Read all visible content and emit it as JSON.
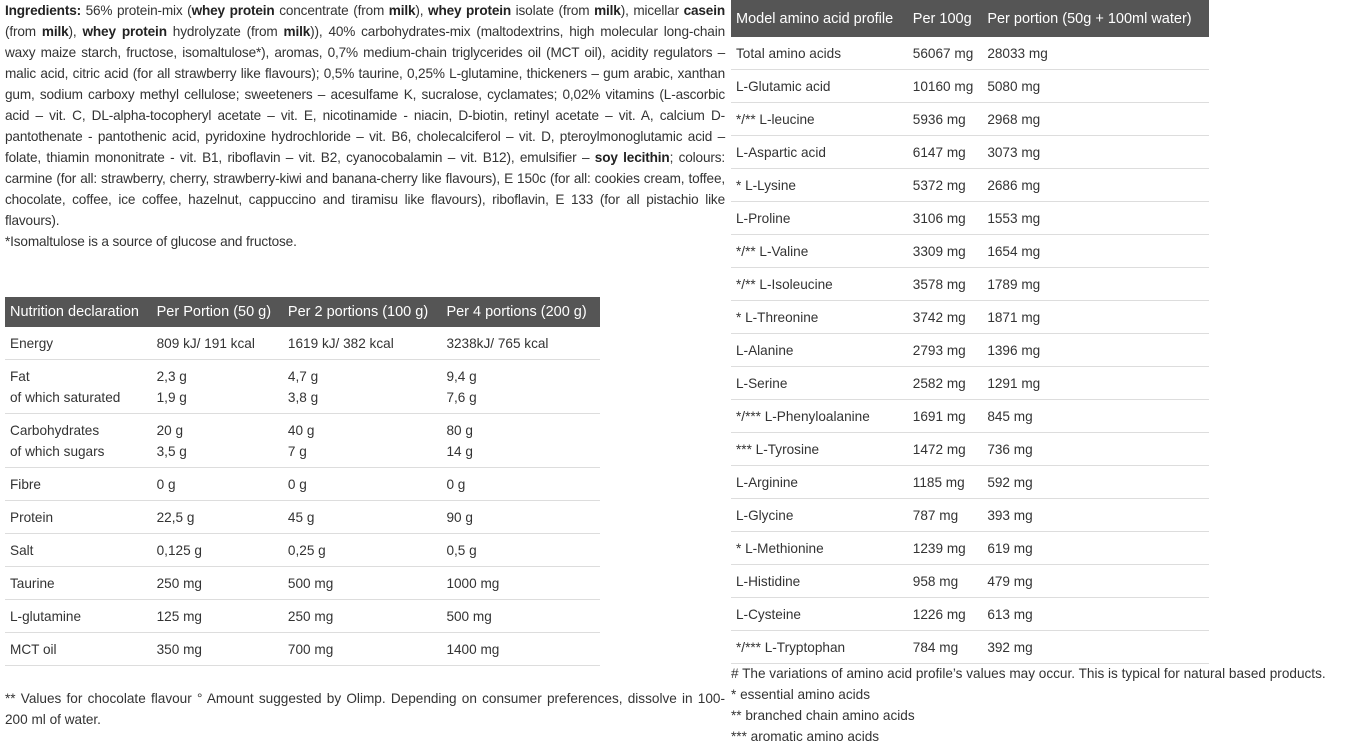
{
  "ingredients": {
    "segments": [
      {
        "text": "Ingredients:",
        "bold": true
      },
      {
        "text": " 56% protein-mix (",
        "bold": false
      },
      {
        "text": "whey protein",
        "bold": true
      },
      {
        "text": " concentrate (from ",
        "bold": false
      },
      {
        "text": "milk",
        "bold": true
      },
      {
        "text": "), ",
        "bold": false
      },
      {
        "text": "whey protein",
        "bold": true
      },
      {
        "text": " isolate (from ",
        "bold": false
      },
      {
        "text": "milk",
        "bold": true
      },
      {
        "text": "), micellar ",
        "bold": false
      },
      {
        "text": "casein",
        "bold": true
      },
      {
        "text": " (from ",
        "bold": false
      },
      {
        "text": "milk",
        "bold": true
      },
      {
        "text": "), ",
        "bold": false
      },
      {
        "text": "whey protein",
        "bold": true
      },
      {
        "text": " hydrolyzate (from ",
        "bold": false
      },
      {
        "text": "milk",
        "bold": true
      },
      {
        "text": ")), 40% carbohydrates-mix (maltodextrins, high molecular long-chain waxy maize starch, fructose, isomaltulose*), aromas, 0,7% medium-chain triglycerides oil (MCT oil), acidity regulators – malic acid, citric acid (for all strawberry like flavours); 0,5% taurine, 0,25% L-glutamine, thickeners – gum arabic, xanthan gum, sodium carboxy methyl cellulose; sweeteners – acesulfame K, sucralose, cyclamates; 0,02% vitamins (L-ascorbic acid – vit. C, DL-alpha-tocopheryl acetate – vit. E, nicotinamide - niacin, D-biotin, retinyl acetate – vit. A, calcium D-pantothenate - pantothenic acid, pyridoxine hydrochloride – vit. B6, cholecalciferol – vit. D, pteroylmonoglutamic acid – folate, thiamin mononitrate - vit. B1, riboflavin – vit. B2, cyanocobalamin – vit. B12), emulsifier – ",
        "bold": false
      },
      {
        "text": "soy lecithin",
        "bold": true
      },
      {
        "text": "; colours: carmine (for all: strawberry, cherry, strawberry-kiwi and banana-cherry like flavours), E 150c (for all: cookies cream, toffee, chocolate, coffee, ice coffee, hazelnut, cappuccino and tiramisu like flavours), riboflavin, E 133 (for all pistachio like flavours).",
        "bold": false
      }
    ],
    "note": "*Isomaltulose is a source of glucose and fructose."
  },
  "nutrition": {
    "headers": [
      "Nutrition declaration",
      "Per Portion (50 g)",
      "Per 2 portions (100 g)",
      "Per 4 portions (200 g)"
    ],
    "rows": [
      [
        [
          "Energy"
        ],
        [
          "809 kJ/ 191 kcal"
        ],
        [
          "1619 kJ/ 382 kcal"
        ],
        [
          "3238kJ/ 765 kcal"
        ]
      ],
      [
        [
          "Fat",
          "of which saturated"
        ],
        [
          "2,3 g",
          "1,9 g"
        ],
        [
          "4,7 g",
          "3,8 g"
        ],
        [
          "9,4 g",
          "7,6 g"
        ]
      ],
      [
        [
          "Carbohydrates",
          "of which sugars"
        ],
        [
          "20 g",
          "3,5 g"
        ],
        [
          "40 g",
          "7 g"
        ],
        [
          "80 g",
          "14 g"
        ]
      ],
      [
        [
          "Fibre"
        ],
        [
          "0 g"
        ],
        [
          "0 g"
        ],
        [
          "0 g"
        ]
      ],
      [
        [
          "Protein"
        ],
        [
          "22,5 g"
        ],
        [
          "45 g"
        ],
        [
          "90 g"
        ]
      ],
      [
        [
          "Salt"
        ],
        [
          "0,125 g"
        ],
        [
          "0,25 g"
        ],
        [
          "0,5 g"
        ]
      ],
      [
        [
          "Taurine"
        ],
        [
          "250 mg"
        ],
        [
          "500 mg"
        ],
        [
          "1000 mg"
        ]
      ],
      [
        [
          "L-glutamine"
        ],
        [
          "125 mg"
        ],
        [
          "250 mg"
        ],
        [
          "500 mg"
        ]
      ],
      [
        [
          "MCT oil"
        ],
        [
          "350 mg"
        ],
        [
          "700 mg"
        ],
        [
          "1400 mg"
        ]
      ]
    ],
    "footnote": "** Values for chocolate flavour ° Amount suggested by Olimp. Depending on consumer preferences, dissolve in 100-200 ml of water."
  },
  "amino": {
    "headers": [
      "Model amino acid profile",
      "Per 100g",
      "Per portion (50g + 100ml water)"
    ],
    "rows": [
      [
        "Total amino acids",
        "56067 mg",
        "28033 mg"
      ],
      [
        "L-Glutamic acid",
        "10160 mg",
        "5080 mg"
      ],
      [
        "*/** L-leucine",
        "5936 mg",
        "2968 mg"
      ],
      [
        "L-Aspartic acid",
        "6147 mg",
        "3073 mg"
      ],
      [
        "* L-Lysine",
        "5372 mg",
        "2686 mg"
      ],
      [
        "L-Proline",
        "3106 mg",
        "1553 mg"
      ],
      [
        "*/** L-Valine",
        "3309 mg",
        "1654 mg"
      ],
      [
        "*/** L-Isoleucine",
        "3578 mg",
        "1789 mg"
      ],
      [
        "* L-Threonine",
        "3742 mg",
        "1871 mg"
      ],
      [
        "L-Alanine",
        "2793 mg",
        "1396 mg"
      ],
      [
        "L-Serine",
        "2582 mg",
        "1291 mg"
      ],
      [
        "*/*** L-Phenyloalanine",
        "1691 mg",
        "845 mg"
      ],
      [
        "*** L-Tyrosine",
        "1472 mg",
        "736 mg"
      ],
      [
        "L-Arginine",
        "1185 mg",
        "592 mg"
      ],
      [
        "L-Glycine",
        "787 mg",
        "393 mg"
      ],
      [
        "* L-Methionine",
        "1239 mg",
        "619 mg"
      ],
      [
        "L-Histidine",
        "958 mg",
        "479 mg"
      ],
      [
        "L-Cysteine",
        "1226 mg",
        "613 mg"
      ],
      [
        "*/*** L-Tryptophan",
        "784 mg",
        "392 mg"
      ]
    ],
    "footnotes": [
      "# The variations of amino acid profile’s values may occur. This is typical for natural based products.",
      "* essential amino acids",
      "** branched chain amino acids",
      "*** aromatic amino acids"
    ]
  },
  "colors": {
    "header_bg": "#555555",
    "header_text": "#ffffff",
    "row_border": "#dddddd",
    "text": "#333333"
  }
}
